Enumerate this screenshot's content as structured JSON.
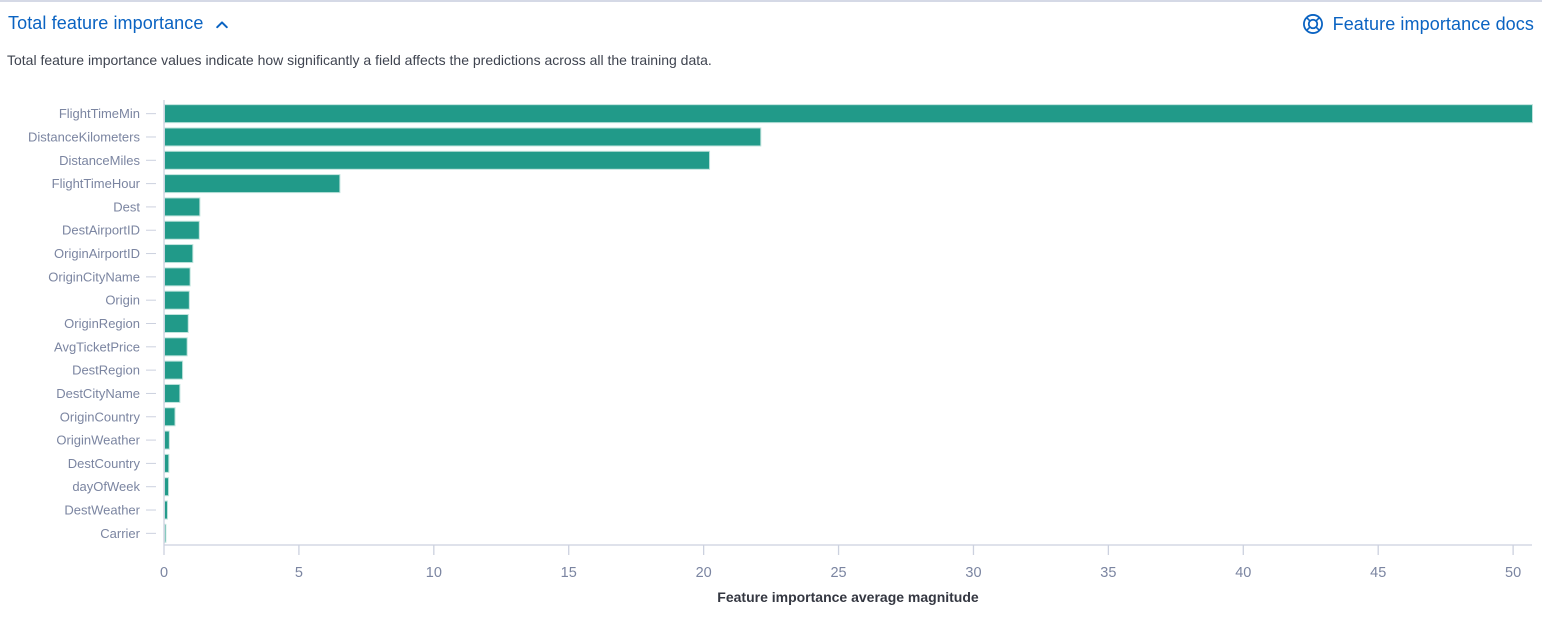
{
  "header": {
    "title": "Total feature importance",
    "collapse_icon": "chevron-up-icon",
    "docs_link_label": "Feature importance docs",
    "docs_icon": "life-ring-icon",
    "link_color": "#0a63c2"
  },
  "description": "Total feature importance values indicate how significantly a field affects the predictions across all the training data.",
  "chart_data": {
    "type": "bar",
    "orientation": "horizontal",
    "title": "",
    "xlabel": "Feature importance average magnitude",
    "ylabel": "",
    "xlim": [
      0,
      50.7
    ],
    "xticks": [
      0,
      5,
      10,
      15,
      20,
      25,
      30,
      35,
      40,
      45,
      50
    ],
    "grid": false,
    "legend": "none",
    "bar_color": "#219a89",
    "axis_color": "#ccd1df",
    "label_color": "#7b85a1",
    "categories": [
      "FlightTimeMin",
      "DistanceKilometers",
      "DistanceMiles",
      "FlightTimeHour",
      "Dest",
      "DestAirportID",
      "OriginAirportID",
      "OriginCityName",
      "Origin",
      "OriginRegion",
      "AvgTicketPrice",
      "DestRegion",
      "DestCityName",
      "OriginCountry",
      "OriginWeather",
      "DestCountry",
      "dayOfWeek",
      "DestWeather",
      "Carrier"
    ],
    "values": [
      50.7,
      22.1,
      20.2,
      6.5,
      1.31,
      1.29,
      1.05,
      0.95,
      0.92,
      0.88,
      0.84,
      0.67,
      0.57,
      0.39,
      0.18,
      0.16,
      0.15,
      0.11,
      0.05
    ]
  }
}
